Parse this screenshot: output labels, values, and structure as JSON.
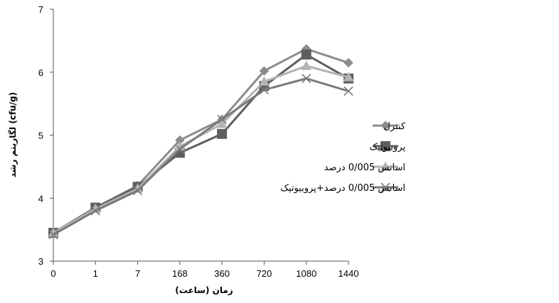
{
  "chart_data": {
    "type": "line",
    "xlabel": "زمان (ساعت)",
    "ylabel": "لگاریتم رشد (cfu/g)",
    "categories": [
      "0",
      "1",
      "7",
      "168",
      "360",
      "720",
      "1080",
      "1440"
    ],
    "ylim": [
      3,
      7
    ],
    "yticks": [
      3,
      4,
      5,
      6,
      7
    ],
    "grid": false,
    "legend_position": "right",
    "series": [
      {
        "name": "کنترل",
        "color": "#8c8c8c",
        "marker": "diamond",
        "values": [
          3.45,
          3.85,
          4.2,
          4.92,
          5.25,
          6.02,
          6.37,
          6.15
        ]
      },
      {
        "name": "پروبیوتیک",
        "color": "#5e5e5e",
        "marker": "square",
        "values": [
          3.45,
          3.85,
          4.18,
          4.72,
          5.02,
          5.78,
          6.28,
          5.9
        ]
      },
      {
        "name": "اسانس 0/005 درصد",
        "color": "#b4b4b4",
        "marker": "triangle",
        "values": [
          3.45,
          3.83,
          4.15,
          4.82,
          5.18,
          5.85,
          6.1,
          5.92
        ]
      },
      {
        "name": "اسانس 0/005 درصد+پروبیوتیک",
        "color": "#7a7a7a",
        "marker": "x",
        "values": [
          3.42,
          3.8,
          4.12,
          4.78,
          5.25,
          5.72,
          5.9,
          5.7
        ]
      }
    ]
  }
}
